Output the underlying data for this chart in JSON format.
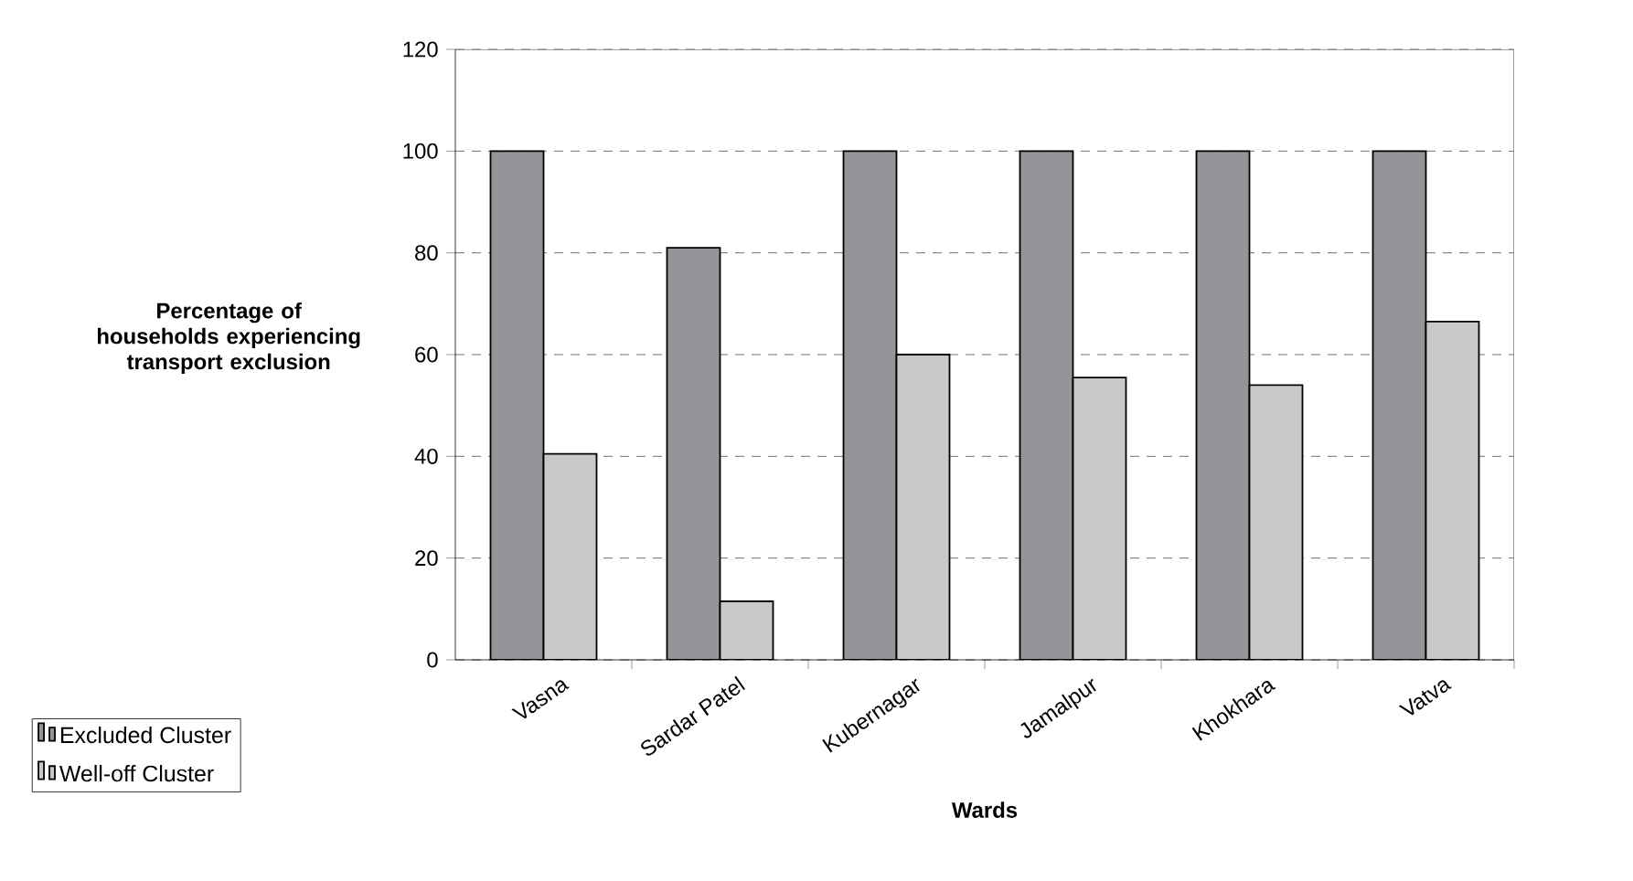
{
  "chart_data": {
    "type": "bar",
    "xlabel": "Wards",
    "ylabel": "Percentage of households experiencing transport exclusion",
    "categories": [
      "Vasna",
      "Sardar Patel",
      "Kubernagar",
      "Jamalpur",
      "Khokhara",
      "Vatva"
    ],
    "series": [
      {
        "name": "Excluded Cluster",
        "color": "#939598",
        "values": [
          100,
          81,
          100,
          100,
          100,
          100
        ]
      },
      {
        "name": "Well-off Cluster",
        "color": "#c8c9cb",
        "values": [
          40.5,
          11.5,
          60,
          55.5,
          54,
          66.5
        ]
      }
    ],
    "ylim": [
      0,
      120
    ],
    "yticks": [
      0,
      20,
      40,
      60,
      80,
      100,
      120
    ],
    "grid": "y",
    "legend": "bottom left"
  }
}
